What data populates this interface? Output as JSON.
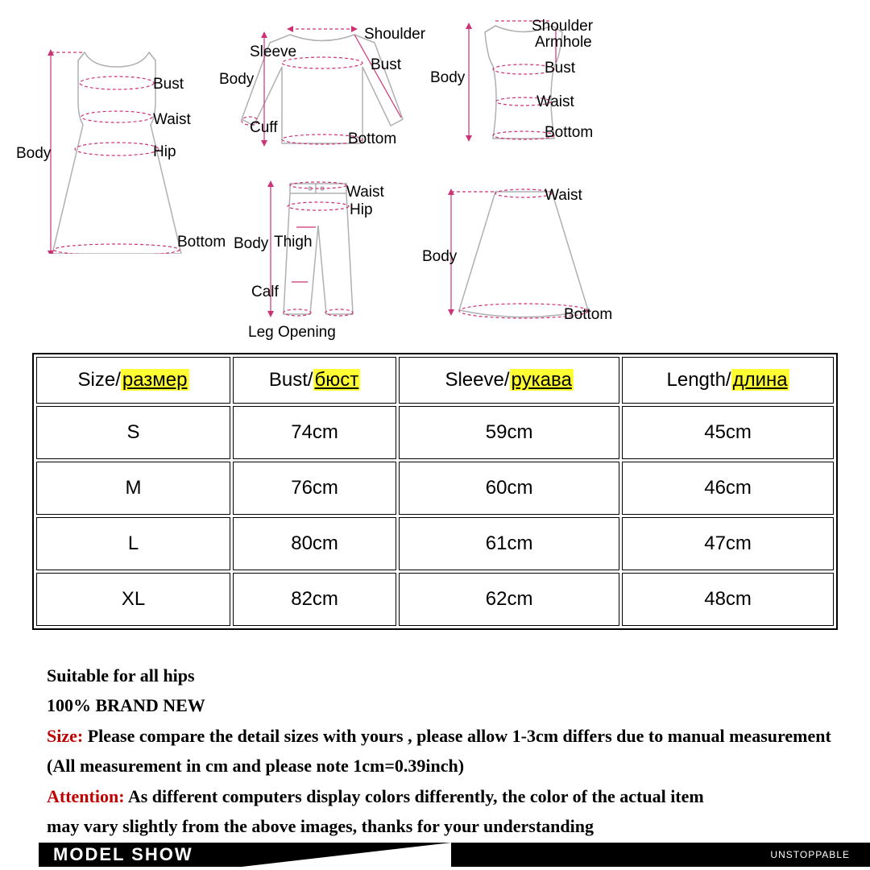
{
  "diagrams": {
    "dress": {
      "labels": {
        "body": "Body",
        "bust": "Bust",
        "waist": "Waist",
        "hip": "Hip",
        "bottom": "Bottom"
      }
    },
    "shirt": {
      "labels": {
        "body": "Body",
        "sleeve": "Sleeve",
        "shoulder": "Shoulder",
        "bust": "Bust",
        "cuff": "Cuff",
        "bottom": "Bottom"
      }
    },
    "vest": {
      "labels": {
        "body": "Body",
        "shoulder": "Shoulder",
        "armhole": "Armhole",
        "bust": "Bust",
        "waist": "Waist",
        "bottom": "Bottom"
      }
    },
    "pants": {
      "labels": {
        "body": "Body",
        "waist": "Waist",
        "hip": "Hip",
        "thigh": "Thigh",
        "calf": "Calf",
        "leg_opening": "Leg Opening"
      }
    },
    "skirt": {
      "labels": {
        "body": "Body",
        "waist": "Waist",
        "bottom": "Bottom"
      }
    }
  },
  "table": {
    "headers": [
      {
        "en": "Size",
        "ru": "размер"
      },
      {
        "en": "Bust",
        "ru": "бюст"
      },
      {
        "en": "Sleeve",
        "ru": "рукава"
      },
      {
        "en": "Length",
        "ru": "длина"
      }
    ],
    "rows": [
      [
        "S",
        "74cm",
        "59cm",
        "45cm"
      ],
      [
        "M",
        "76cm",
        "60cm",
        "46cm"
      ],
      [
        "L",
        "80cm",
        "61cm",
        "47cm"
      ],
      [
        "XL",
        "82cm",
        "62cm",
        "48cm"
      ]
    ],
    "header_fontsize": 24,
    "cell_fontsize": 24,
    "border_color": "#000000",
    "highlight_color": "#ffff33"
  },
  "notes": {
    "line1": "Suitable for all hips",
    "line2": "100% BRAND NEW",
    "size_prefix": "Size:",
    "size_text": " Please compare the detail sizes with yours , please allow 1-3cm differs due to manual measurement",
    "size_line2": "(All measurement in cm and please note 1cm=0.39inch)",
    "attention_prefix": "Attention:",
    "attention_text": " As different computers display colors differently, the color of the actual item",
    "attention_line2": "may vary slightly from the above images, thanks for your understanding",
    "red_color": "#c00000"
  },
  "footer": {
    "left": "MODEL SHOW",
    "right": "UNSTOPPABLE",
    "bg": "#000000",
    "fg": "#ffffff"
  }
}
